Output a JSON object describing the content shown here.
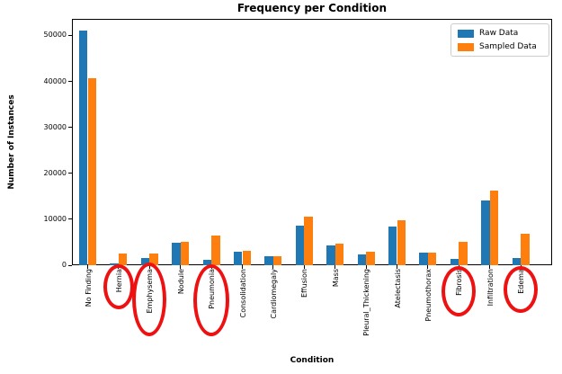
{
  "chart_data": {
    "type": "bar",
    "title": "Frequency per Condition",
    "xlabel": "Condition",
    "ylabel": "Number of Instances",
    "categories": [
      "No Finding",
      "Hernia",
      "Emphysema",
      "Nodule",
      "Pneumonia",
      "Consolidation",
      "Cardiomegaly",
      "Effusion",
      "Mass",
      "Pleural_Thickening",
      "Atelectasis",
      "Pneumothorax",
      "Fibrosis",
      "Infiltration",
      "Edema"
    ],
    "series": [
      {
        "name": "Raw Data",
        "color": "#1f77b4",
        "values": [
          51000,
          400,
          1500,
          4900,
          1200,
          3000,
          1900,
          8600,
          4300,
          2400,
          8400,
          2800,
          1400,
          14100,
          1600
        ]
      },
      {
        "name": "Sampled Data",
        "color": "#ff7f0e",
        "values": [
          40600,
          2500,
          2500,
          5100,
          6400,
          3100,
          1900,
          10500,
          4700,
          2900,
          9800,
          2800,
          5100,
          16200,
          6900
        ]
      }
    ],
    "ylim": [
      0,
      53600
    ],
    "yticks": [
      0,
      10000,
      20000,
      30000,
      40000,
      50000
    ],
    "grid": false,
    "legend_position": "upper right",
    "annotations": {
      "shape": "ellipse",
      "color": "#ee1111",
      "circled_labels": [
        "Hernia",
        "Emphysema",
        "Pneumonia",
        "Fibrosis",
        "Edema"
      ],
      "ellipses": [
        {
          "label": "Hernia",
          "rx": 17,
          "ry": 25,
          "cy": 319
        },
        {
          "label": "Emphysema",
          "rx": 19,
          "ry": 41,
          "cy": 333
        },
        {
          "label": "Pneumonia",
          "rx": 20,
          "ry": 40,
          "cy": 334
        },
        {
          "label": "Fibrosis",
          "rx": 19,
          "ry": 28,
          "cy": 324
        },
        {
          "label": "Edema",
          "rx": 19,
          "ry": 26,
          "cy": 322
        }
      ]
    }
  }
}
